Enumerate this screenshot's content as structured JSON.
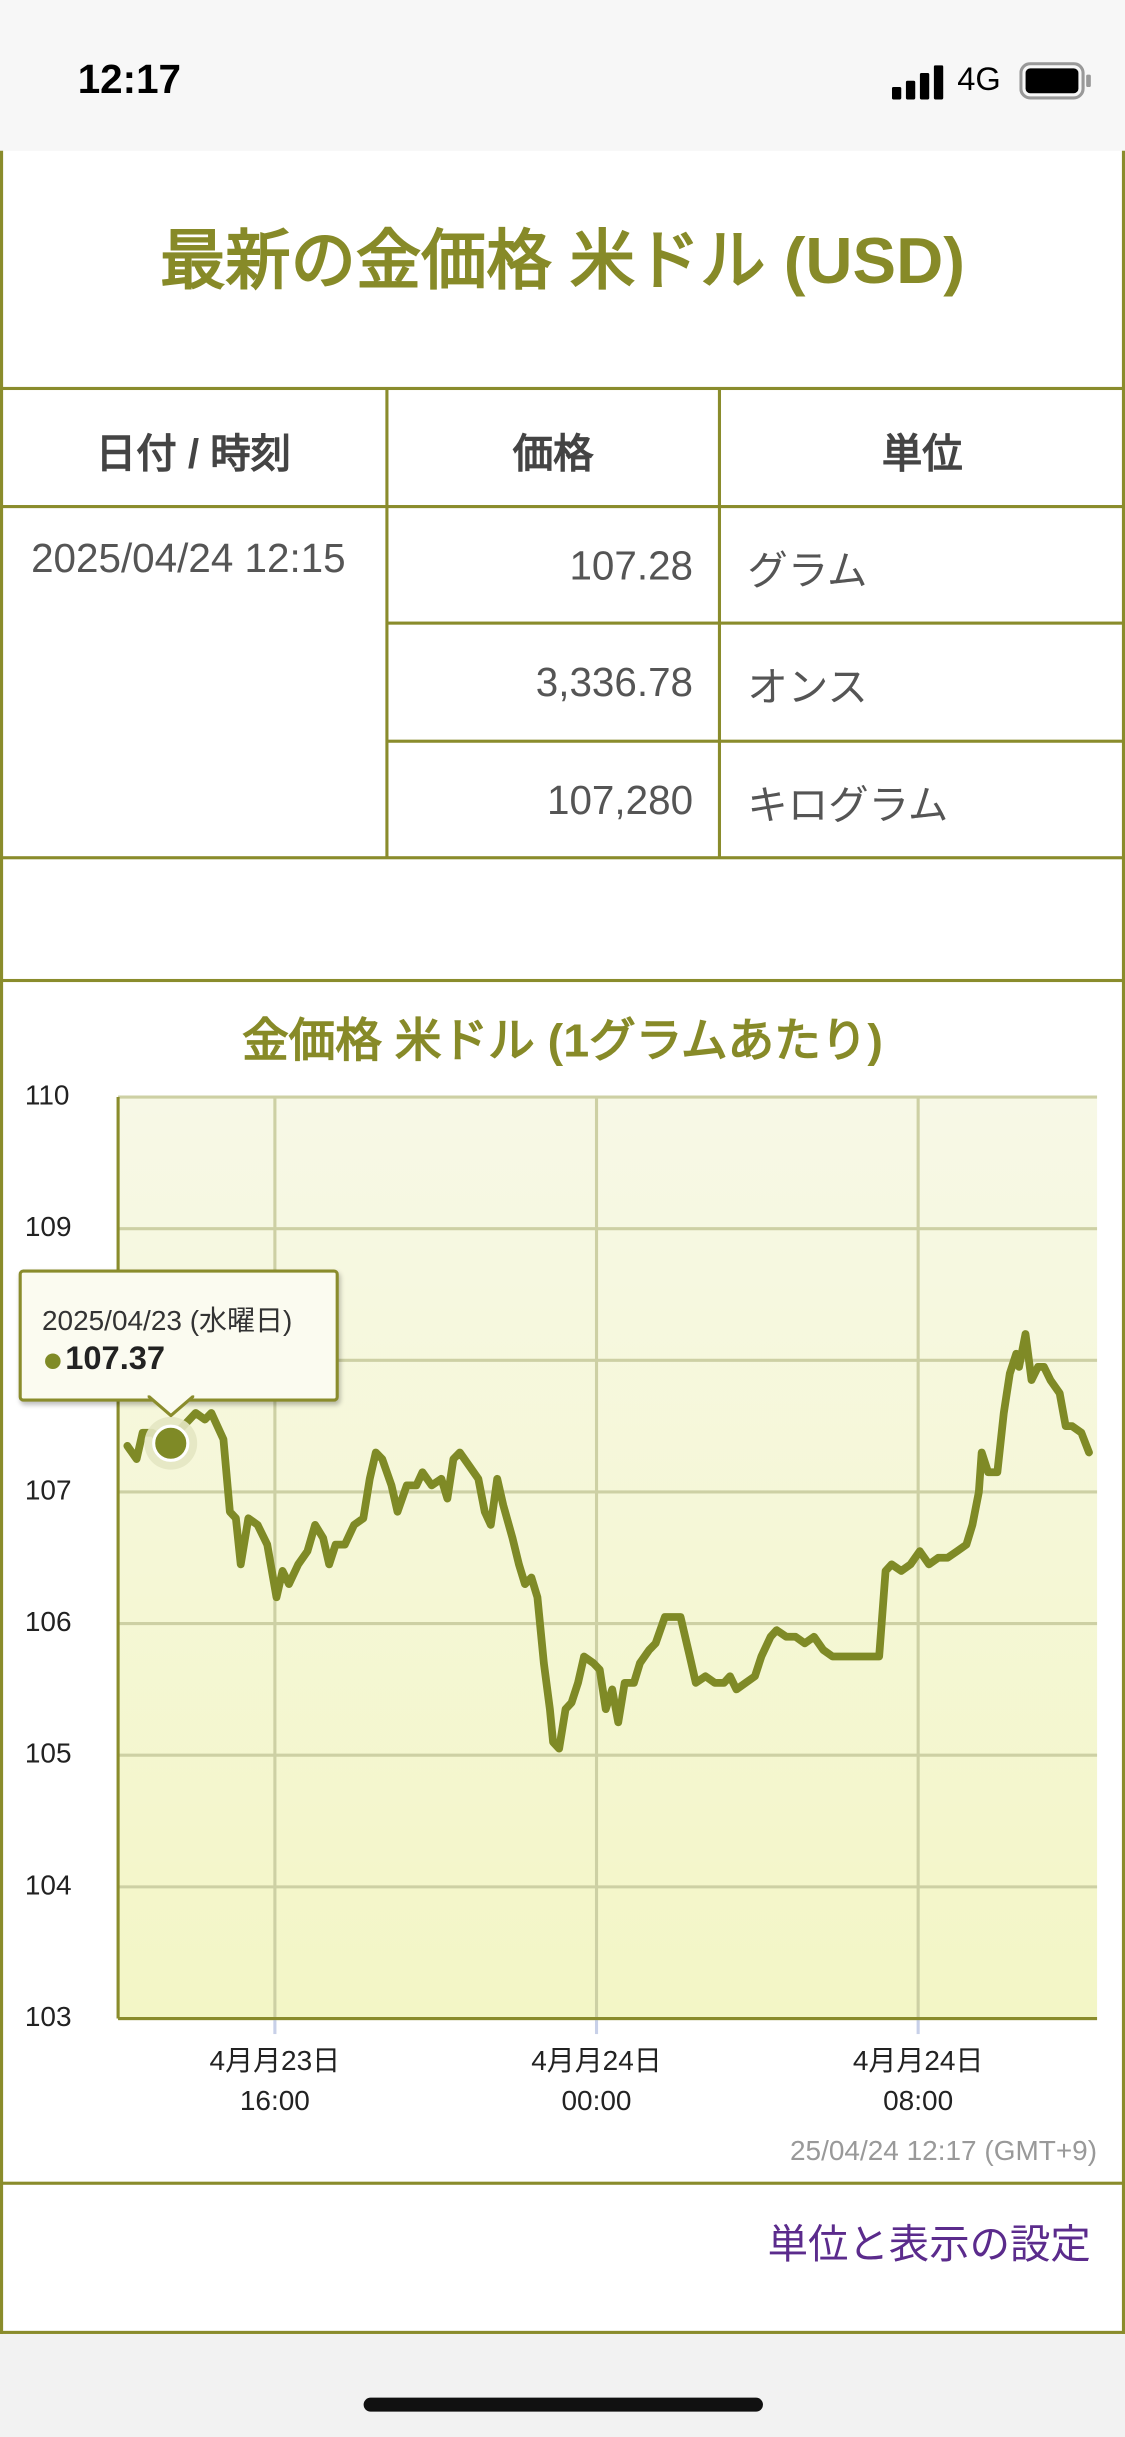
{
  "status_bar": {
    "time": "12:17",
    "network": "4G"
  },
  "header": {
    "title": "最新の金価格 米ドル (USD)"
  },
  "table": {
    "columns": [
      "日付 / 時刻",
      "価格",
      "単位"
    ],
    "datetime": "2025/04/24 12:15",
    "rows": [
      [
        "107.28",
        "グラム"
      ],
      [
        "3,336.78",
        "オンス"
      ],
      [
        "107,280",
        "キログラム"
      ]
    ]
  },
  "chart_data": {
    "type": "line",
    "title": "金価格 米ドル (1グラムあたり)",
    "color": "#7f8a26",
    "grid": true,
    "ylim": [
      103,
      110
    ],
    "yticks": [
      103,
      104,
      105,
      106,
      107,
      108,
      109,
      110
    ],
    "xlim": [
      12.1,
      36.45
    ],
    "xticks": [
      {
        "value": 16,
        "label": "4月月23日\n16:00"
      },
      {
        "value": 24,
        "label": "4月月24日\n00:00"
      },
      {
        "value": 32,
        "label": "4月月24日\n08:00"
      }
    ],
    "x": [
      12.33,
      12.56,
      12.71,
      12.95,
      13.18,
      13.41,
      13.72,
      14.03,
      14.26,
      14.42,
      14.72,
      14.88,
      15.03,
      15.15,
      15.34,
      15.57,
      15.81,
      16.04,
      16.19,
      16.35,
      16.58,
      16.81,
      17.0,
      17.2,
      17.35,
      17.51,
      17.74,
      17.97,
      18.2,
      18.36,
      18.51,
      18.67,
      18.9,
      19.05,
      19.28,
      19.52,
      19.67,
      19.9,
      20.14,
      20.29,
      20.44,
      20.6,
      20.83,
      21.06,
      21.22,
      21.37,
      21.53,
      21.68,
      21.91,
      22.07,
      22.22,
      22.38,
      22.53,
      22.69,
      22.84,
      22.92,
      23.07,
      23.23,
      23.38,
      23.54,
      23.69,
      23.92,
      24.08,
      24.23,
      24.39,
      24.54,
      24.7,
      24.93,
      25.08,
      25.31,
      25.47,
      25.7,
      25.93,
      26.09,
      26.32,
      26.47,
      26.71,
      26.94,
      27.17,
      27.32,
      27.48,
      27.71,
      27.94,
      28.1,
      28.33,
      28.48,
      28.72,
      28.95,
      29.18,
      29.41,
      29.64,
      29.87,
      30.26,
      30.65,
      31.03,
      31.19,
      31.34,
      31.58,
      31.81,
      32.04,
      32.27,
      32.5,
      32.73,
      32.97,
      33.2,
      33.35,
      33.51,
      33.58,
      33.74,
      33.97,
      34.13,
      34.28,
      34.44,
      34.51,
      34.67,
      34.82,
      34.98,
      35.13,
      35.29,
      35.52,
      35.67,
      35.83,
      36.06,
      36.25
    ],
    "values": [
      107.35,
      107.25,
      107.45,
      107.45,
      107.4,
      107.4,
      107.5,
      107.6,
      107.55,
      107.6,
      107.4,
      106.85,
      106.8,
      106.45,
      106.8,
      106.75,
      106.6,
      106.2,
      106.4,
      106.3,
      106.45,
      106.55,
      106.75,
      106.65,
      106.45,
      106.6,
      106.6,
      106.75,
      106.8,
      107.1,
      107.3,
      107.25,
      107.05,
      106.85,
      107.05,
      107.05,
      107.15,
      107.05,
      107.1,
      106.95,
      107.25,
      107.3,
      107.2,
      107.1,
      106.85,
      106.75,
      107.1,
      106.9,
      106.65,
      106.45,
      106.3,
      106.35,
      106.2,
      105.7,
      105.35,
      105.1,
      105.05,
      105.35,
      105.4,
      105.55,
      105.75,
      105.7,
      105.65,
      105.35,
      105.5,
      105.25,
      105.55,
      105.55,
      105.7,
      105.8,
      105.85,
      106.05,
      106.05,
      106.05,
      105.75,
      105.55,
      105.6,
      105.55,
      105.55,
      105.6,
      105.5,
      105.55,
      105.6,
      105.75,
      105.9,
      105.95,
      105.9,
      105.9,
      105.85,
      105.9,
      105.8,
      105.75,
      105.75,
      105.75,
      105.75,
      106.4,
      106.45,
      106.4,
      106.45,
      106.55,
      106.45,
      106.5,
      106.5,
      106.55,
      106.6,
      106.75,
      107.0,
      107.3,
      107.15,
      107.15,
      107.6,
      107.9,
      108.05,
      107.95,
      108.2,
      107.85,
      107.95,
      107.95,
      107.85,
      107.75,
      107.5,
      107.5,
      107.45,
      107.3
    ],
    "tooltip": {
      "date": "2025/04/23 (水曜日)",
      "x": 13.41,
      "value": 107.37
    },
    "timestamp": "25/04/24 12:17 (GMT+9)"
  },
  "footer": {
    "link": "単位と表示の設定"
  }
}
